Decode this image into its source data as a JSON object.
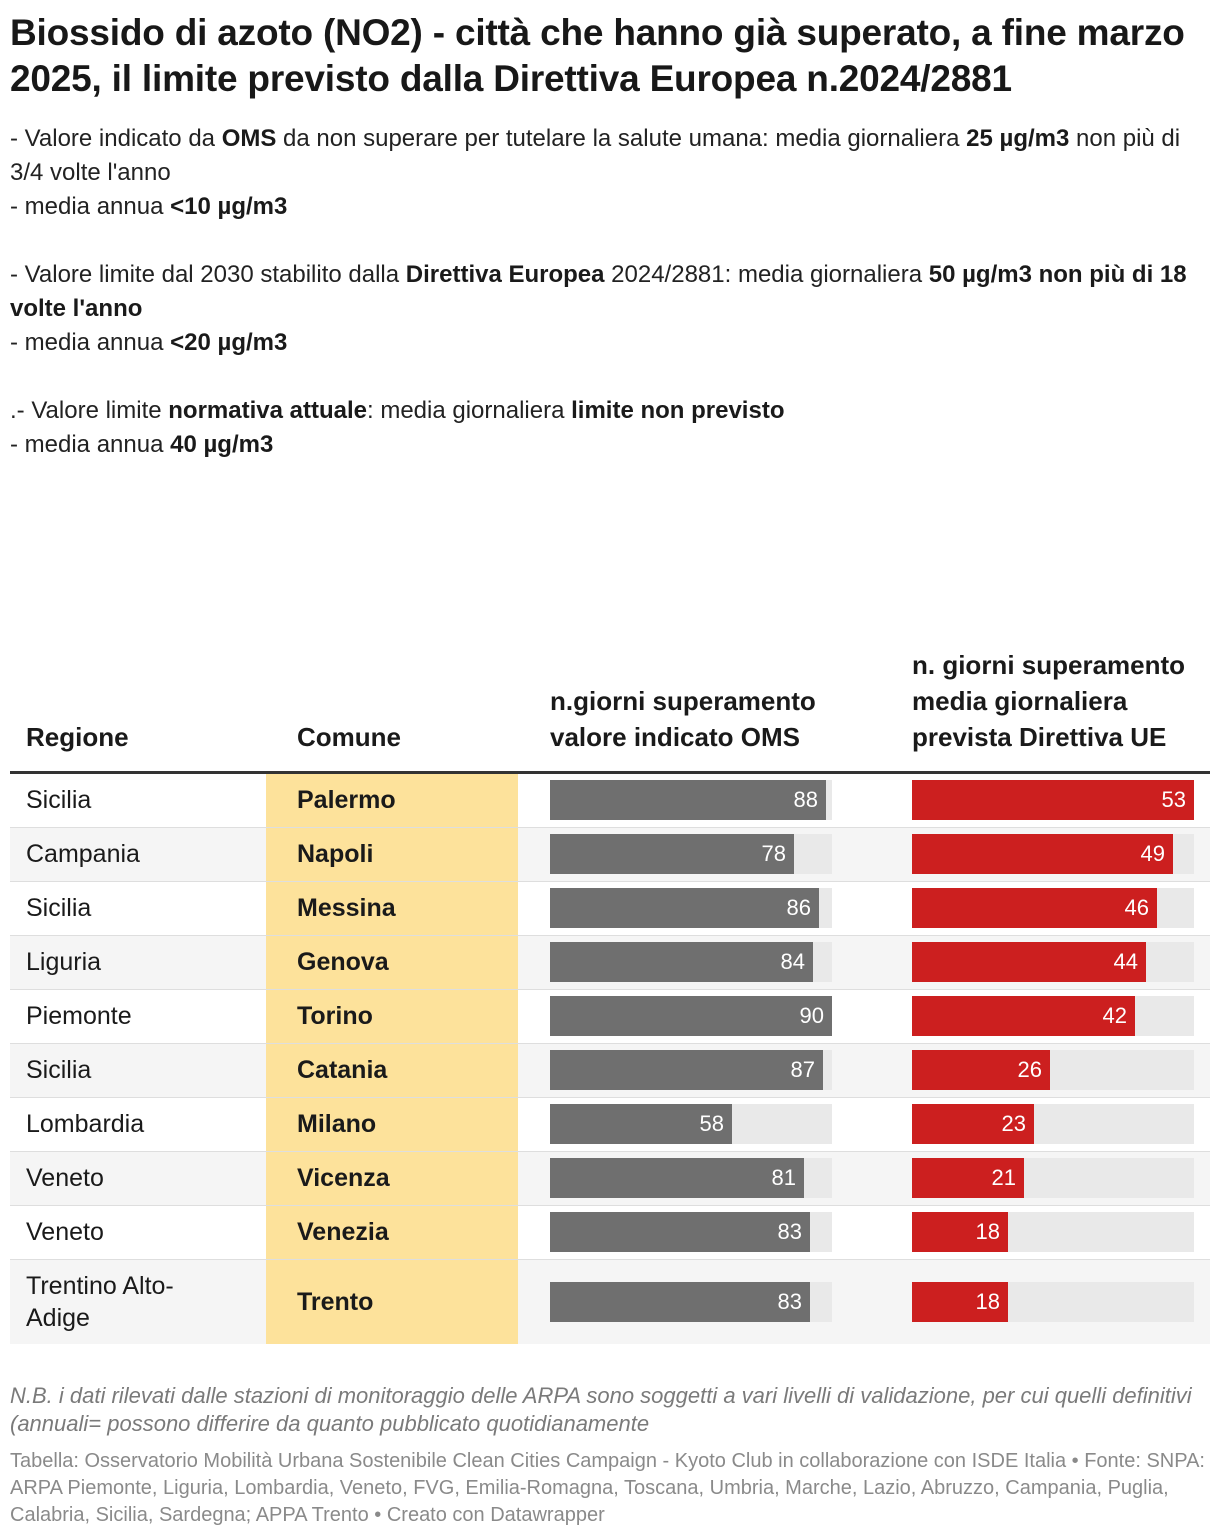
{
  "title": "Biossido di azoto (NO2) - città che hanno già superato, a fine marzo 2025, il limite previsto dalla Direttiva Europea n.2024/2881",
  "intro": {
    "oms_line1_a": "- Valore indicato da ",
    "oms_line1_b": "OMS",
    "oms_line1_c": " da non superare per tutelare la salute umana: media giornaliera ",
    "oms_line1_d": "25 µg/m3",
    "oms_line1_e": " non più di 3/4 volte l'anno",
    "oms_line2_a": "- media annua ",
    "oms_line2_b": "<10 µg/m3",
    "ue_line1_a": "- Valore limite dal 2030 stabilito dalla ",
    "ue_line1_b": "Direttiva Europea",
    "ue_line1_c": " 2024/2881: media giornaliera ",
    "ue_line1_d": "50 µg/m3 non più di 18 volte l'anno",
    "ue_line2_a": "- media annua ",
    "ue_line2_b": "<20 µg/m3",
    "att_line1_a": ".- Valore limite ",
    "att_line1_b": "normativa attuale",
    "att_line1_c": ": media giornaliera ",
    "att_line1_d": "limite non previsto",
    "att_line2_a": "- media annua ",
    "att_line2_b": "40 µg/m3"
  },
  "columns": {
    "regione": "Regione",
    "comune": "Comune",
    "oms": "n.giorni superamento valore indicato OMS",
    "ue": "n. giorni superamento media giornaliera prevista Direttiva UE"
  },
  "colors": {
    "oms_bar": "#6f6f6f",
    "ue_bar": "#cc1f1f",
    "track": "#e9e9e9",
    "city_highlight": "#fde29b"
  },
  "chart_data": {
    "type": "table",
    "title": "Biossido di azoto (NO2) - città che hanno già superato, a fine marzo 2025, il limite previsto dalla Direttiva Europea n.2024/2881",
    "oms_max": 90,
    "ue_max": 53,
    "rows": [
      {
        "regione": "Sicilia",
        "comune": "Palermo",
        "oms": 88,
        "ue": 53
      },
      {
        "regione": "Campania",
        "comune": "Napoli",
        "oms": 78,
        "ue": 49
      },
      {
        "regione": "Sicilia",
        "comune": "Messina",
        "oms": 86,
        "ue": 46
      },
      {
        "regione": "Liguria",
        "comune": "Genova",
        "oms": 84,
        "ue": 44
      },
      {
        "regione": "Piemonte",
        "comune": "Torino",
        "oms": 90,
        "ue": 42
      },
      {
        "regione": "Sicilia",
        "comune": "Catania",
        "oms": 87,
        "ue": 26
      },
      {
        "regione": "Lombardia",
        "comune": "Milano",
        "oms": 58,
        "ue": 23
      },
      {
        "regione": "Veneto",
        "comune": "Vicenza",
        "oms": 81,
        "ue": 21
      },
      {
        "regione": "Veneto",
        "comune": "Venezia",
        "oms": 83,
        "ue": 18
      },
      {
        "regione": "Trentino Alto-Adige",
        "comune": "Trento",
        "oms": 83,
        "ue": 18
      }
    ]
  },
  "note": "N.B. i dati rilevati dalle stazioni di monitoraggio delle ARPA sono soggetti a vari livelli di validazione, per cui quelli definitivi (annuali= possono differire da quanto pubblicato quotidianamente",
  "source": "Tabella: Osservatorio Mobilità Urbana Sostenibile Clean Cities Campaign - Kyoto Club in collaborazione con ISDE Italia • Fonte: SNPA: ARPA Piemonte, Liguria, Lombardia, Veneto, FVG, Emilia-Romagna, Toscana, Umbria, Marche, Lazio, Abruzzo, Campania, Puglia, Calabria, Sicilia, Sardegna; APPA Trento • Creato con Datawrapper"
}
